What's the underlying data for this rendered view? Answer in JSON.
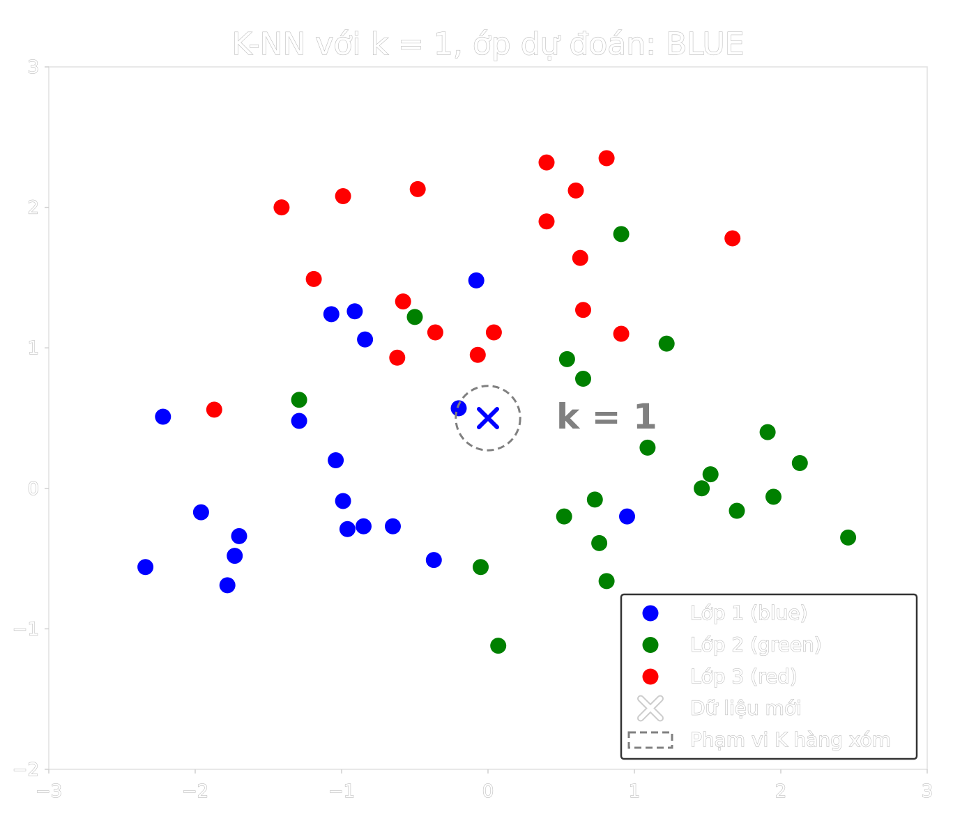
{
  "chart_data": {
    "type": "scatter",
    "title": "K-NN với k = 1,  ớp dự đoán: BLUE",
    "xlim": [
      -3,
      3
    ],
    "ylim": [
      -2,
      3
    ],
    "x_ticks": [
      -3,
      -2,
      -1,
      0,
      1,
      2,
      3
    ],
    "y_ticks": [
      -2,
      -1,
      0,
      1,
      2,
      3
    ],
    "x_tick_labels": [
      "−3",
      "−2",
      "−1",
      "0",
      "1",
      "2",
      "3"
    ],
    "y_tick_labels": [
      "−2",
      "−1",
      "0",
      "1",
      "2",
      "3"
    ],
    "grid": false,
    "legend": "bottom-right",
    "k_label": "k = 1",
    "k_value": 1,
    "new_point": {
      "name": "Dữ liệu mới",
      "x": 0.0,
      "y": 0.5,
      "color": "#0000ff",
      "neighbor_radius": 0.22
    },
    "neighbor_region_name": "Phạm vi K hàng xóm",
    "neighbor_region_color": "#808080",
    "series": [
      {
        "name": "Lớp 1 (blue)",
        "color": "#0000ff",
        "points": [
          [
            -2.22,
            0.51
          ],
          [
            -1.96,
            -0.17
          ],
          [
            -1.7,
            -0.34
          ],
          [
            -1.73,
            -0.48
          ],
          [
            -2.34,
            -0.56
          ],
          [
            -1.78,
            -0.69
          ],
          [
            -1.29,
            0.48
          ],
          [
            -1.07,
            1.24
          ],
          [
            -0.91,
            1.26
          ],
          [
            -0.84,
            1.06
          ],
          [
            -1.04,
            0.2
          ],
          [
            -0.99,
            -0.09
          ],
          [
            -0.96,
            -0.29
          ],
          [
            -0.85,
            -0.27
          ],
          [
            -0.65,
            -0.27
          ],
          [
            -0.37,
            -0.51
          ],
          [
            -0.2,
            0.57
          ],
          [
            -0.08,
            1.48
          ],
          [
            0.95,
            -0.2
          ]
        ]
      },
      {
        "name": "Lớp 2 (green)",
        "color": "#008000",
        "points": [
          [
            -1.29,
            0.63
          ],
          [
            -0.5,
            1.22
          ],
          [
            0.54,
            0.92
          ],
          [
            0.65,
            0.78
          ],
          [
            0.91,
            1.81
          ],
          [
            1.22,
            1.03
          ],
          [
            1.09,
            0.29
          ],
          [
            1.91,
            0.4
          ],
          [
            2.13,
            0.18
          ],
          [
            1.52,
            0.1
          ],
          [
            1.46,
            0.0
          ],
          [
            1.7,
            -0.16
          ],
          [
            1.95,
            -0.06
          ],
          [
            2.46,
            -0.35
          ],
          [
            0.73,
            -0.08
          ],
          [
            0.52,
            -0.2
          ],
          [
            0.76,
            -0.39
          ],
          [
            0.81,
            -0.66
          ],
          [
            -0.05,
            -0.56
          ],
          [
            0.07,
            -1.12
          ]
        ]
      },
      {
        "name": "Lớp 3 (red)",
        "color": "#ff0000",
        "points": [
          [
            -1.41,
            2.0
          ],
          [
            -0.99,
            2.08
          ],
          [
            -0.48,
            2.13
          ],
          [
            0.4,
            2.32
          ],
          [
            0.81,
            2.35
          ],
          [
            0.6,
            2.12
          ],
          [
            0.4,
            1.9
          ],
          [
            1.67,
            1.78
          ],
          [
            0.63,
            1.64
          ],
          [
            0.65,
            1.27
          ],
          [
            0.91,
            1.1
          ],
          [
            -1.19,
            1.49
          ],
          [
            -0.58,
            1.33
          ],
          [
            -0.36,
            1.11
          ],
          [
            0.04,
            1.11
          ],
          [
            -0.62,
            0.93
          ],
          [
            -0.07,
            0.95
          ],
          [
            -1.87,
            0.56
          ]
        ]
      }
    ]
  }
}
